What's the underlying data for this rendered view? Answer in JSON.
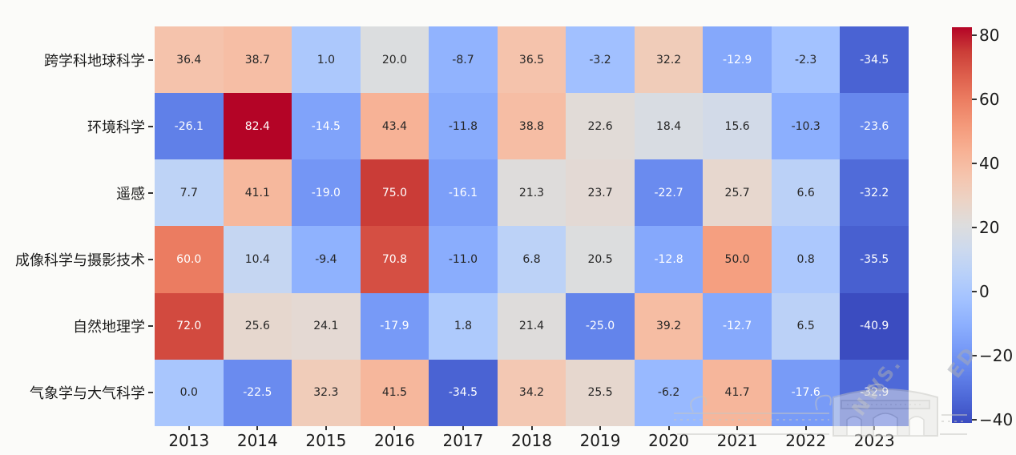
{
  "chart_data": {
    "type": "heatmap",
    "title": "",
    "xlabel": "",
    "ylabel": "",
    "colormap": "coolwarm",
    "vmin": -40.9,
    "vmax": 82.4,
    "grid": false,
    "legend_position": "right-colorbar",
    "annotation_decimals": 1,
    "x_labels": [
      "2013",
      "2014",
      "2015",
      "2016",
      "2017",
      "2018",
      "2019",
      "2020",
      "2021",
      "2022",
      "2023"
    ],
    "rows": [
      {
        "label": "跨学科地球科学",
        "values": [
          36.4,
          38.7,
          1.0,
          20.0,
          -8.7,
          36.5,
          -3.2,
          32.2,
          -12.9,
          -2.3,
          -34.5
        ]
      },
      {
        "label": "环境科学",
        "values": [
          -26.1,
          82.4,
          -14.5,
          43.4,
          -11.8,
          38.8,
          22.6,
          18.4,
          15.6,
          -10.3,
          -23.6
        ]
      },
      {
        "label": "遥感",
        "values": [
          7.7,
          41.1,
          -19.0,
          75.0,
          -16.1,
          21.3,
          23.7,
          -22.7,
          25.7,
          6.6,
          -32.2
        ]
      },
      {
        "label": "成像科学与摄影技术",
        "values": [
          60.0,
          10.4,
          -9.4,
          70.8,
          -11.0,
          6.8,
          20.5,
          -12.8,
          50.0,
          0.8,
          -35.5
        ]
      },
      {
        "label": "自然地理学",
        "values": [
          72.0,
          25.6,
          24.1,
          -17.9,
          1.8,
          21.4,
          -25.0,
          39.2,
          -12.7,
          6.5,
          -40.9
        ]
      },
      {
        "label": "气象学与大气科学",
        "values": [
          0.0,
          -22.5,
          32.3,
          41.5,
          -34.5,
          34.2,
          25.5,
          -6.2,
          41.7,
          -17.6,
          -32.9
        ]
      }
    ],
    "colorbar": {
      "tick_labels": [
        "80",
        "60",
        "40",
        "20",
        "0",
        "−20",
        "−40"
      ],
      "tick_values": [
        80,
        60,
        40,
        20,
        0,
        -20,
        -40
      ]
    }
  },
  "colors": {
    "background": "#fbfbf9",
    "axis_text": "#1c1c1c",
    "annotation_dark": "#262626",
    "annotation_light": "#ffffff",
    "colormap_low": "#3b4cc0",
    "colormap_mid": "#dddddd",
    "colormap_high": "#b40426"
  },
  "watermark": {
    "fragments": [
      "NWS.",
      "ED"
    ],
    "building_icon": "gate-building"
  }
}
